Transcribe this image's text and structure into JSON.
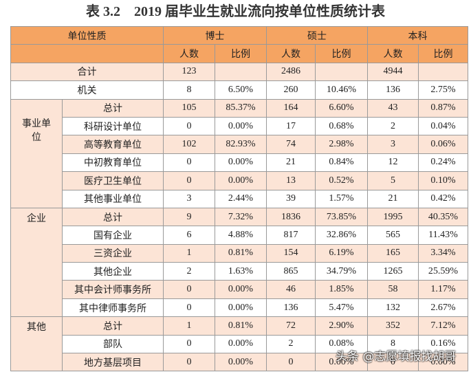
{
  "title": "表 3.2　2019 届毕业生就业流向按单位性质统计表",
  "header": {
    "unit": "单位性质",
    "groups": [
      "博士",
      "硕士",
      "本科"
    ],
    "sub": [
      "人数",
      "比例",
      "人数",
      "比例",
      "人数",
      "比例"
    ]
  },
  "rows": [
    {
      "label": "合计",
      "values": [
        "123",
        null,
        "2486",
        null,
        "4944",
        null
      ]
    },
    {
      "label": "机关",
      "values": [
        "8",
        "6.50%",
        "260",
        "10.46%",
        "136",
        "2.75%"
      ]
    }
  ],
  "groups": [
    {
      "name": "事业单位",
      "rows": [
        {
          "label": "总计",
          "values": [
            "105",
            "85.37%",
            "164",
            "6.60%",
            "43",
            "0.87%"
          ]
        },
        {
          "label": "科研设计单位",
          "values": [
            "0",
            "0.00%",
            "17",
            "0.68%",
            "2",
            "0.04%"
          ]
        },
        {
          "label": "高等教育单位",
          "values": [
            "102",
            "82.93%",
            "74",
            "2.98%",
            "3",
            "0.06%"
          ]
        },
        {
          "label": "中初教育单位",
          "values": [
            "0",
            "0.00%",
            "21",
            "0.84%",
            "12",
            "0.24%"
          ]
        },
        {
          "label": "医疗卫生单位",
          "values": [
            "0",
            "0.00%",
            "13",
            "0.52%",
            "5",
            "0.10%"
          ]
        },
        {
          "label": "其他事业单位",
          "values": [
            "3",
            "2.44%",
            "39",
            "1.57%",
            "21",
            "0.42%"
          ]
        }
      ]
    },
    {
      "name": "企业",
      "rows": [
        {
          "label": "总计",
          "values": [
            "9",
            "7.32%",
            "1836",
            "73.85%",
            "1995",
            "40.35%"
          ]
        },
        {
          "label": "国有企业",
          "values": [
            "6",
            "4.88%",
            "817",
            "32.86%",
            "565",
            "11.43%"
          ]
        },
        {
          "label": "三资企业",
          "values": [
            "1",
            "0.81%",
            "154",
            "6.19%",
            "165",
            "3.34%"
          ]
        },
        {
          "label": "其他企业",
          "values": [
            "2",
            "1.63%",
            "865",
            "34.79%",
            "1265",
            "25.59%"
          ]
        },
        {
          "label": "其中会计师事务所",
          "values": [
            "0",
            "0.00%",
            "46",
            "1.85%",
            "58",
            "1.17%"
          ]
        },
        {
          "label": "其中律师事务所",
          "values": [
            "0",
            "0.00%",
            "136",
            "5.47%",
            "132",
            "2.67%"
          ]
        }
      ]
    },
    {
      "name": "其他",
      "rows": [
        {
          "label": "总计",
          "values": [
            "1",
            "0.81%",
            "72",
            "2.90%",
            "352",
            "7.12%"
          ]
        },
        {
          "label": "部队",
          "values": [
            "0",
            "0.00%",
            "2",
            "0.08%",
            "8",
            "0.16%"
          ]
        },
        {
          "label": "地方基层项目",
          "values": [
            "0",
            "0.00%",
            "0",
            "0.00%",
            "0",
            "0.00%"
          ]
        }
      ]
    }
  ],
  "watermark": "头条 @志愿填报找胡哥"
}
